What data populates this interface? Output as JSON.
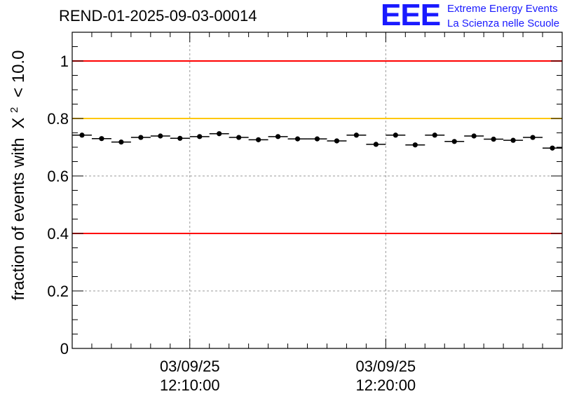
{
  "header": {
    "title": "REND-01-2025-09-03-00014",
    "logo_mark": "EEE",
    "logo_line1": "Extreme Energy Events",
    "logo_line2": "La Scienza nelle Scuole"
  },
  "colors": {
    "upper_line": "#ff0000",
    "warning_line": "#ffc800",
    "lower_line": "#ff0000",
    "points": "#000000",
    "grid": "#9a9a9a"
  },
  "chart_data": {
    "type": "scatter",
    "title": "REND-01-2025-09-03-00014",
    "xlabel": "",
    "ylabel_prefix": "fraction of events with",
    "ylabel_symbol": "X",
    "ylabel_superscript": "2",
    "ylabel_suffix": "< 10.0",
    "ylim": [
      0,
      1.1
    ],
    "yticks": [
      0,
      0.2,
      0.4,
      0.6,
      0.8,
      1
    ],
    "ytick_labels": [
      "0",
      "0.2",
      "0.4",
      "0.6",
      "0.8",
      "1"
    ],
    "x_range_minutes": [
      0,
      25
    ],
    "xticks_minutes": [
      6,
      16
    ],
    "xtick_labels": [
      [
        "03/09/25",
        "12:10:00"
      ],
      [
        "03/09/25",
        "12:20:00"
      ]
    ],
    "grid": true,
    "reference_lines": [
      {
        "y": 1.0,
        "color": "#ff0000"
      },
      {
        "y": 0.8,
        "color": "#ffc800"
      },
      {
        "y": 0.4,
        "color": "#ff0000"
      }
    ],
    "series": [
      {
        "name": "fraction",
        "bin_width_minutes": 1,
        "x": [
          0,
          1,
          2,
          3,
          4,
          5,
          6,
          7,
          8,
          9,
          10,
          11,
          12,
          13,
          14,
          15,
          16,
          17,
          18,
          19,
          20,
          21,
          22,
          23,
          24
        ],
        "values": [
          0.742,
          0.73,
          0.718,
          0.734,
          0.739,
          0.731,
          0.737,
          0.747,
          0.734,
          0.726,
          0.737,
          0.729,
          0.729,
          0.722,
          0.742,
          0.71,
          0.742,
          0.708,
          0.742,
          0.72,
          0.739,
          0.728,
          0.724,
          0.734,
          0.697
        ]
      }
    ]
  }
}
